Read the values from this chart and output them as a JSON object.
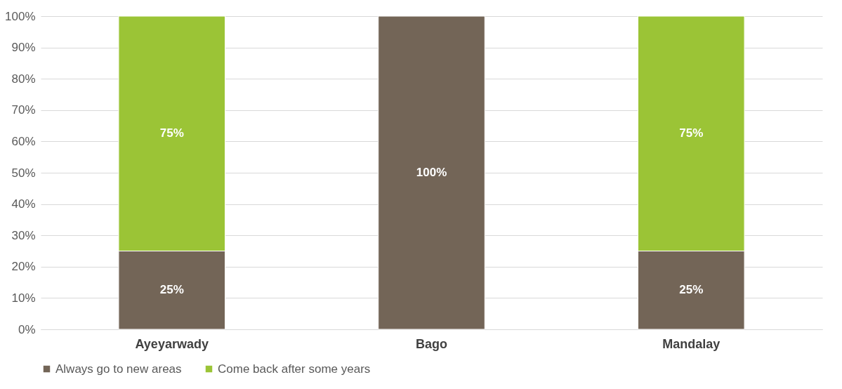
{
  "chart_data": {
    "type": "bar",
    "stacked": true,
    "categories": [
      "Ayeyarwady",
      "Bago",
      "Mandalay"
    ],
    "series": [
      {
        "name": "Always go to new areas",
        "color": "#736557",
        "values": [
          25,
          100,
          25
        ],
        "value_labels": [
          "25%",
          "100%",
          "25%"
        ]
      },
      {
        "name": "Come back after some years",
        "color": "#9bc436",
        "values": [
          75,
          null,
          75
        ],
        "value_labels": [
          "75%",
          null,
          "75%"
        ]
      }
    ],
    "ylim": [
      0,
      100
    ],
    "yticks": [
      {
        "value": 0,
        "label": "0%"
      },
      {
        "value": 10,
        "label": "10%"
      },
      {
        "value": 20,
        "label": "20%"
      },
      {
        "value": 30,
        "label": "30%"
      },
      {
        "value": 40,
        "label": "40%"
      },
      {
        "value": 50,
        "label": "50%"
      },
      {
        "value": 60,
        "label": "60%"
      },
      {
        "value": 70,
        "label": "70%"
      },
      {
        "value": 80,
        "label": "80%"
      },
      {
        "value": 90,
        "label": "90%"
      },
      {
        "value": 100,
        "label": "100%"
      }
    ],
    "grid": "y",
    "legend": "bottom"
  }
}
